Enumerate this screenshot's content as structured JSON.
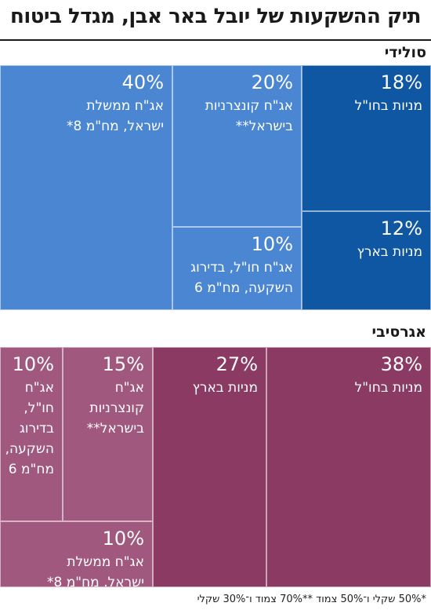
{
  "title": "תיק ההשקעות של יובל באר אבן, מגדל ביטוח",
  "footnote": "*50% שקלי ו־50% צמוד  **70% צמוד ו־30% שקלי",
  "chart_data": [
    {
      "type": "treemap",
      "name": "סולידי",
      "items": [
        {
          "label": "אג\"ח ממשלת\nישראל, מח\"מ 8*",
          "value": 40,
          "color": "#4a86d1"
        },
        {
          "label": "אג\"ח קונצרניות\nבישראל**",
          "value": 20,
          "color": "#4a86d1"
        },
        {
          "label": "אג\"ח חו\"ל, בדירוג\nהשקעה, מח\"מ 6",
          "value": 10,
          "color": "#4a86d1"
        },
        {
          "label": "מניות בחו\"ל",
          "value": 18,
          "color": "#0f57a3"
        },
        {
          "label": "מניות בארץ",
          "value": 12,
          "color": "#0f57a3"
        }
      ]
    },
    {
      "type": "treemap",
      "name": "אגרסיבי",
      "items": [
        {
          "label": "מניות בחו\"ל",
          "value": 38,
          "color": "#8a3a63"
        },
        {
          "label": "מניות בארץ",
          "value": 27,
          "color": "#8a3a63"
        },
        {
          "label": "אג\"ח\nקונצרניות\nבישראל**",
          "value": 15,
          "color": "#a0587e"
        },
        {
          "label": "אג\"ח\nחו\"ל,\nבדירוג\nהשקעה,\nמח\"מ 6",
          "value": 10,
          "color": "#a0587e"
        },
        {
          "label": "אג\"ח ממשלת\nישראל, מח\"מ 8*",
          "value": 10,
          "color": "#a0587e"
        }
      ]
    }
  ]
}
